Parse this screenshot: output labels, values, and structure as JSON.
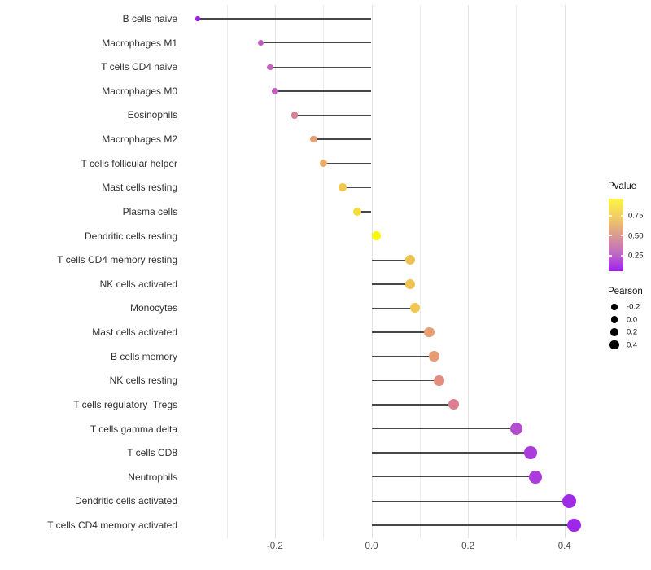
{
  "chart_data": {
    "type": "lollipop",
    "orientation": "horizontal",
    "title": "",
    "xlabel": "",
    "ylabel": "",
    "x_ticks": [
      -0.2,
      0.0,
      0.2,
      0.4
    ],
    "x_tick_labels": [
      "-0.2",
      "0.0",
      "0.2",
      "0.4"
    ],
    "x_grid_values": [
      -0.3,
      -0.2,
      -0.1,
      0.0,
      0.1,
      0.2,
      0.3,
      0.4
    ],
    "xlim": [
      -0.395,
      0.463
    ],
    "baseline": 0.0,
    "grid": "vertical-only",
    "series": [
      {
        "label": "B cells naive",
        "pearson": -0.36,
        "pvalue_color_est": 0.03,
        "color": "#9B22E9"
      },
      {
        "label": "Macrophages M1",
        "pearson": -0.23,
        "pvalue_color_est": 0.3,
        "color": "#C05BBE"
      },
      {
        "label": "T cells CD4 naive",
        "pearson": -0.21,
        "pvalue_color_est": 0.33,
        "color": "#C464BC"
      },
      {
        "label": "Macrophages M0",
        "pearson": -0.2,
        "pvalue_color_est": 0.32,
        "color": "#C360BD"
      },
      {
        "label": "Eosinophils",
        "pearson": -0.16,
        "pvalue_color_est": 0.45,
        "color": "#D87E91"
      },
      {
        "label": "Macrophages M2",
        "pearson": -0.12,
        "pvalue_color_est": 0.58,
        "color": "#E8A173"
      },
      {
        "label": "T cells follicular helper",
        "pearson": -0.1,
        "pvalue_color_est": 0.64,
        "color": "#ECAB62"
      },
      {
        "label": "Mast cells resting",
        "pearson": -0.06,
        "pvalue_color_est": 0.78,
        "color": "#F1C74E"
      },
      {
        "label": "Plasma cells",
        "pearson": -0.03,
        "pvalue_color_est": 0.87,
        "color": "#F5DC3E"
      },
      {
        "label": "Dendritic cells resting",
        "pearson": 0.01,
        "pvalue_color_est": 0.97,
        "color": "#FAF703"
      },
      {
        "label": "T cells CD4 memory resting",
        "pearson": 0.08,
        "pvalue_color_est": 0.74,
        "color": "#EFC254"
      },
      {
        "label": "NK cells activated",
        "pearson": 0.08,
        "pvalue_color_est": 0.74,
        "color": "#EFC254"
      },
      {
        "label": "Monocytes",
        "pearson": 0.09,
        "pvalue_color_est": 0.76,
        "color": "#F0C64F"
      },
      {
        "label": "Mast cells activated",
        "pearson": 0.12,
        "pvalue_color_est": 0.59,
        "color": "#E89C72"
      },
      {
        "label": "B cells memory",
        "pearson": 0.13,
        "pvalue_color_est": 0.58,
        "color": "#E79A74"
      },
      {
        "label": "NK cells resting",
        "pearson": 0.14,
        "pvalue_color_est": 0.53,
        "color": "#E28D7F"
      },
      {
        "label": "T cells regulatory  Tregs",
        "pearson": 0.17,
        "pvalue_color_est": 0.46,
        "color": "#DC8090"
      },
      {
        "label": "T cells gamma delta",
        "pearson": 0.3,
        "pvalue_color_est": 0.2,
        "color": "#B44DCD"
      },
      {
        "label": "T cells CD8",
        "pearson": 0.33,
        "pvalue_color_est": 0.14,
        "color": "#AA3CDC"
      },
      {
        "label": "Neutrophils",
        "pearson": 0.34,
        "pvalue_color_est": 0.14,
        "color": "#AA3CDC"
      },
      {
        "label": "Dendritic cells activated",
        "pearson": 0.41,
        "pvalue_color_est": 0.05,
        "color": "#9E2BE5"
      },
      {
        "label": "T cells CD4 memory activated",
        "pearson": 0.42,
        "pvalue_color_est": 0.04,
        "color": "#9F27EB"
      }
    ]
  },
  "legend": {
    "pvalue": {
      "title": "Pvalue",
      "tick_labels": [
        "0.75",
        "0.50",
        "0.25"
      ],
      "gradient_stops_bottom_to_top": [
        "#A01FF2",
        "#C06CC0",
        "#DB9B90",
        "#F2CE62",
        "#FBF545"
      ]
    },
    "pearson": {
      "title": "Pearson",
      "size_labels": [
        "-0.2",
        "0.0",
        "0.2",
        "0.4"
      ],
      "size_values": [
        -0.2,
        0.0,
        0.2,
        0.4
      ],
      "key_color": "#000000"
    }
  },
  "style_colors": {
    "stem": "#474747",
    "grid_major": "#e3e3e3",
    "grid_minor": "#ececec",
    "axis_text": "#4d4d4d"
  }
}
